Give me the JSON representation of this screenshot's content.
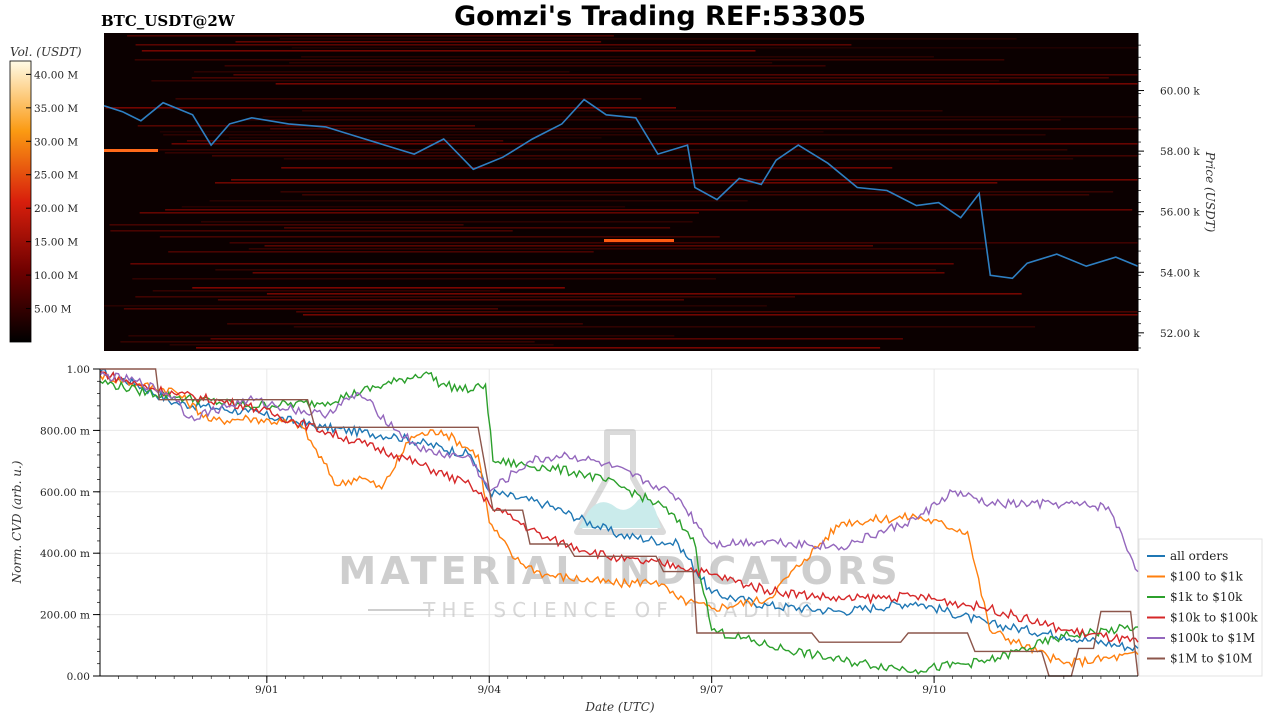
{
  "header": {
    "pair": "BTC_USDT@2W",
    "title": "Gomzi's Trading REF:53305"
  },
  "colorbar": {
    "label": "Vol. (USDT)",
    "ticks": [
      {
        "value": 5,
        "label": "5.00 M"
      },
      {
        "value": 10,
        "label": "10.00 M"
      },
      {
        "value": 15,
        "label": "15.00 M"
      },
      {
        "value": 20,
        "label": "20.00 M"
      },
      {
        "value": 25,
        "label": "25.00 M"
      },
      {
        "value": 30,
        "label": "30.00 M"
      },
      {
        "value": 35,
        "label": "35.00 M"
      },
      {
        "value": 40,
        "label": "40.00 M"
      }
    ],
    "range": [
      0,
      42
    ]
  },
  "watermark": {
    "line1": "MATERIAL INDICATORS",
    "line2": "THE SCIENCE OF TRADING"
  },
  "chart_data": [
    {
      "type": "heatmap",
      "ylabel": "Price (USDT)",
      "ylim": [
        51.4,
        61.9
      ],
      "yticks": [
        {
          "value": 52,
          "label": "52.00 k"
        },
        {
          "value": 54,
          "label": "54.00 k"
        },
        {
          "value": 56,
          "label": "56.00 k"
        },
        {
          "value": 58,
          "label": "58.00 k"
        },
        {
          "value": 60,
          "label": "60.00 k"
        }
      ],
      "xlim": [
        0,
        14
      ],
      "price_line_color": "#2e7fc2",
      "price_points": [
        [
          0.0,
          59.5
        ],
        [
          0.25,
          59.3
        ],
        [
          0.5,
          59.0
        ],
        [
          0.8,
          59.6
        ],
        [
          1.2,
          59.2
        ],
        [
          1.45,
          58.2
        ],
        [
          1.7,
          58.9
        ],
        [
          2.0,
          59.1
        ],
        [
          2.5,
          58.9
        ],
        [
          3.0,
          58.8
        ],
        [
          3.4,
          58.5
        ],
        [
          3.8,
          58.2
        ],
        [
          4.2,
          57.9
        ],
        [
          4.6,
          58.4
        ],
        [
          5.0,
          57.4
        ],
        [
          5.4,
          57.8
        ],
        [
          5.8,
          58.4
        ],
        [
          6.2,
          58.9
        ],
        [
          6.5,
          59.7
        ],
        [
          6.8,
          59.2
        ],
        [
          7.2,
          59.1
        ],
        [
          7.5,
          57.9
        ],
        [
          7.9,
          58.2
        ],
        [
          8.0,
          56.8
        ],
        [
          8.3,
          56.4
        ],
        [
          8.6,
          57.1
        ],
        [
          8.9,
          56.9
        ],
        [
          9.1,
          57.7
        ],
        [
          9.4,
          58.2
        ],
        [
          9.8,
          57.6
        ],
        [
          10.2,
          56.8
        ],
        [
          10.6,
          56.7
        ],
        [
          11.0,
          56.2
        ],
        [
          11.3,
          56.3
        ],
        [
          11.6,
          55.8
        ],
        [
          11.85,
          56.6
        ],
        [
          12.0,
          53.9
        ],
        [
          12.3,
          53.8
        ],
        [
          12.5,
          54.3
        ],
        [
          12.9,
          54.6
        ],
        [
          13.3,
          54.2
        ],
        [
          13.7,
          54.5
        ],
        [
          14.0,
          54.2
        ]
      ]
    },
    {
      "type": "line",
      "xlabel": "Date (UTC)",
      "ylabel": "Norm. CVD (arb. u.)",
      "ylim": [
        0,
        1
      ],
      "xlim": [
        0,
        14
      ],
      "xticks": [
        {
          "value": 2.25,
          "label": "9/01"
        },
        {
          "value": 5.25,
          "label": "9/04"
        },
        {
          "value": 8.25,
          "label": "9/07"
        },
        {
          "value": 11.25,
          "label": "9/10"
        }
      ],
      "yticks": [
        {
          "value": 0,
          "label": "0.00"
        },
        {
          "value": 0.2,
          "label": "200.00 m"
        },
        {
          "value": 0.4,
          "label": "400.00 m"
        },
        {
          "value": 0.6,
          "label": "600.00 m"
        },
        {
          "value": 0.8,
          "label": "800.00 m"
        },
        {
          "value": 1.0,
          "label": "1.00"
        }
      ],
      "legend": "right",
      "series": [
        {
          "name": "all orders",
          "color": "#1f77b4",
          "x": [
            0,
            0.5,
            1,
            2,
            3,
            4,
            5,
            5.25,
            6,
            7,
            7.8,
            8.25,
            9,
            10,
            11,
            12,
            13,
            14
          ],
          "y": [
            0.99,
            0.95,
            0.89,
            0.86,
            0.81,
            0.78,
            0.72,
            0.6,
            0.56,
            0.46,
            0.43,
            0.27,
            0.23,
            0.21,
            0.24,
            0.17,
            0.13,
            0.09
          ]
        },
        {
          "name": "$100 to $1k",
          "color": "#ff7f0e",
          "x": [
            0,
            0.5,
            1,
            1.5,
            2,
            2.7,
            3.2,
            3.5,
            3.8,
            4.2,
            4.6,
            5.1,
            5.25,
            5.6,
            6,
            7,
            7.5,
            7.8,
            8.25,
            9,
            9.5,
            10,
            11,
            11.7,
            12,
            13,
            14
          ],
          "y": [
            0.98,
            0.95,
            0.93,
            0.83,
            0.84,
            0.82,
            0.62,
            0.65,
            0.61,
            0.78,
            0.8,
            0.72,
            0.5,
            0.38,
            0.33,
            0.3,
            0.31,
            0.25,
            0.22,
            0.25,
            0.38,
            0.5,
            0.52,
            0.47,
            0.15,
            0.04,
            0.07
          ]
        },
        {
          "name": "$1k to $10k",
          "color": "#2ca02c",
          "x": [
            0,
            0.5,
            1,
            2,
            3,
            4,
            4.4,
            4.6,
            5,
            5.2,
            5.3,
            6,
            6.5,
            7,
            7.6,
            8,
            8.25,
            9,
            10,
            11,
            12,
            13,
            14
          ],
          "y": [
            0.96,
            0.93,
            0.91,
            0.88,
            0.89,
            0.96,
            0.99,
            0.95,
            0.93,
            0.95,
            0.7,
            0.68,
            0.66,
            0.62,
            0.55,
            0.45,
            0.15,
            0.1,
            0.05,
            0.02,
            0.05,
            0.13,
            0.16
          ]
        },
        {
          "name": "$10k to $100k",
          "color": "#d62728",
          "x": [
            0,
            0.5,
            1,
            2,
            3,
            4,
            5,
            5.25,
            6,
            7,
            7.8,
            8.25,
            9,
            10,
            11,
            12,
            13,
            14
          ],
          "y": [
            0.99,
            0.95,
            0.92,
            0.88,
            0.8,
            0.72,
            0.62,
            0.56,
            0.45,
            0.38,
            0.36,
            0.33,
            0.28,
            0.25,
            0.26,
            0.22,
            0.15,
            0.11
          ]
        },
        {
          "name": "$100k to $1M",
          "color": "#9467bd",
          "x": [
            0,
            0.5,
            1,
            1.2,
            2,
            3,
            3.5,
            4,
            4.4,
            5,
            5.25,
            5.8,
            6.3,
            6.8,
            7.5,
            7.8,
            8.25,
            9,
            10,
            11,
            11.5,
            12,
            13,
            13.6,
            14
          ],
          "y": [
            0.98,
            0.96,
            0.91,
            0.84,
            0.9,
            0.85,
            0.92,
            0.8,
            0.73,
            0.71,
            0.6,
            0.7,
            0.72,
            0.69,
            0.62,
            0.58,
            0.43,
            0.44,
            0.42,
            0.51,
            0.6,
            0.56,
            0.56,
            0.55,
            0.34
          ]
        },
        {
          "name": "$1M to $10M",
          "color": "#8c564b",
          "x": [
            0,
            0.75,
            0.8,
            2.8,
            2.9,
            5.1,
            5.3,
            5.7,
            5.8,
            6.3,
            6.4,
            7.5,
            7.6,
            8.0,
            8.05,
            9.6,
            9.7,
            10.8,
            10.9,
            11.7,
            11.8,
            12.7,
            12.8,
            13.1,
            13.2,
            13.4,
            13.5,
            13.9,
            14
          ],
          "y": [
            1.0,
            1.0,
            0.9,
            0.9,
            0.81,
            0.81,
            0.54,
            0.54,
            0.43,
            0.43,
            0.39,
            0.39,
            0.34,
            0.34,
            0.14,
            0.14,
            0.11,
            0.11,
            0.14,
            0.14,
            0.08,
            0.08,
            0.0,
            0.0,
            0.09,
            0.09,
            0.21,
            0.21,
            0.0
          ]
        }
      ]
    }
  ]
}
